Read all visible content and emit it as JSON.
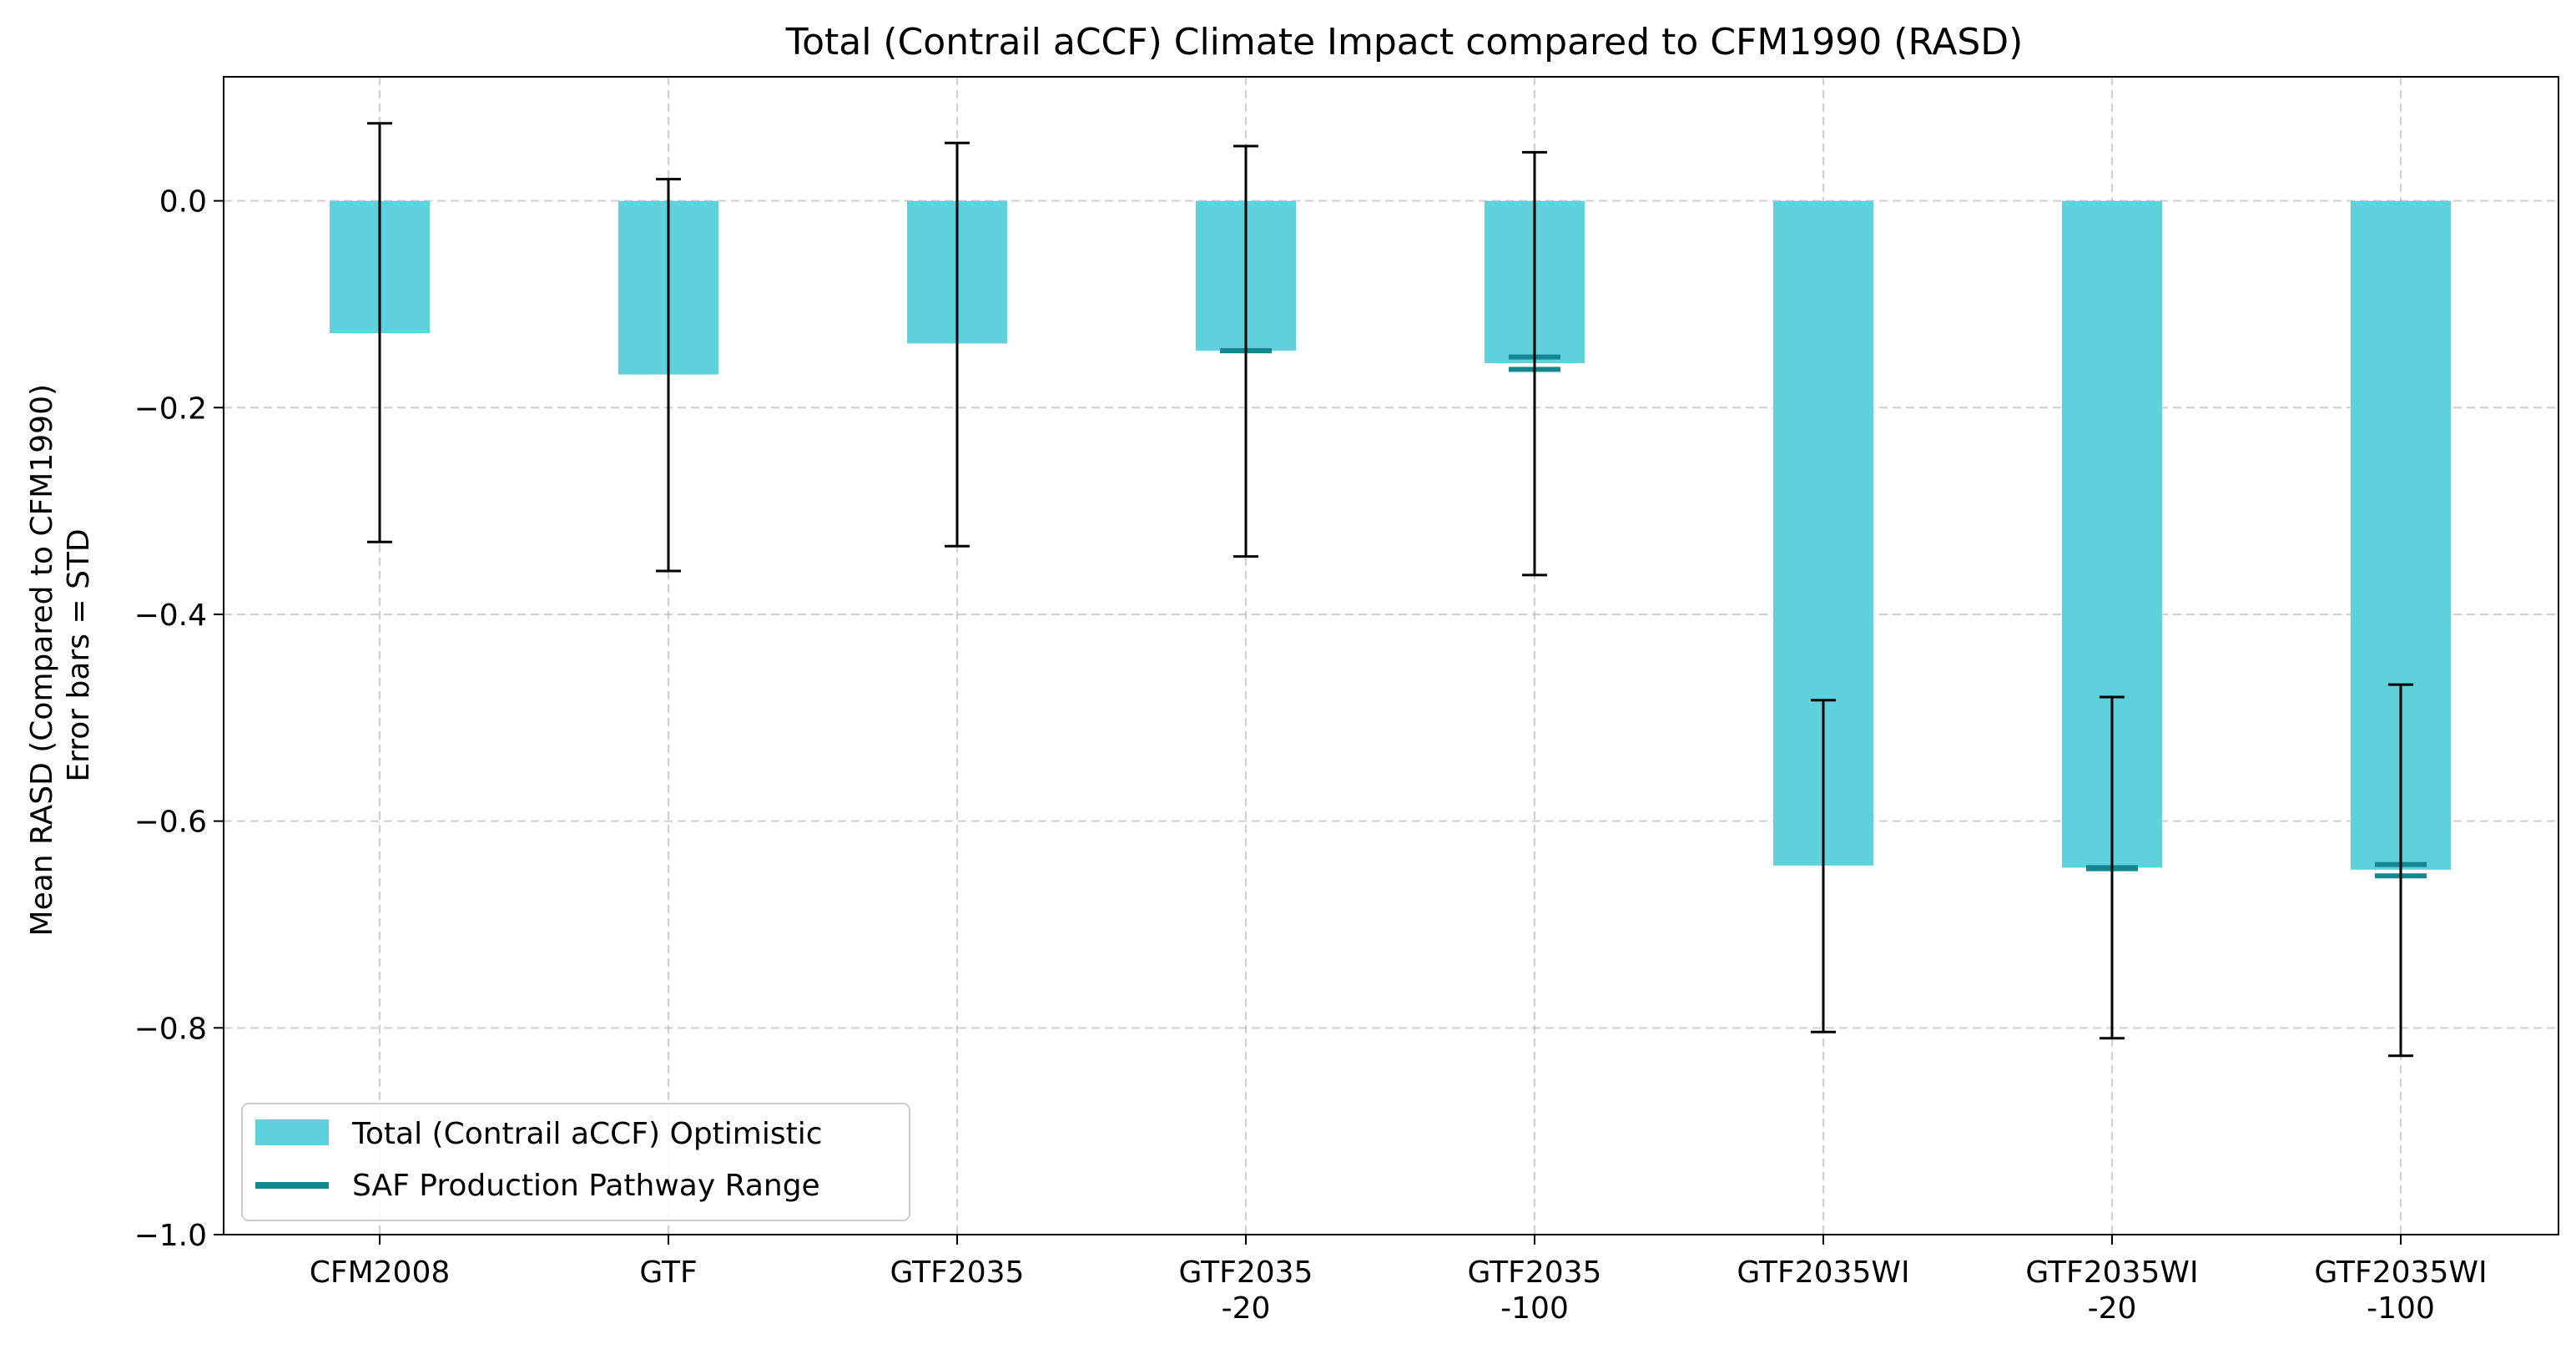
{
  "chart_data": {
    "type": "bar",
    "title": "Total (Contrail aCCF) Climate Impact compared to CFM1990 (RASD)",
    "ylabel": [
      "Mean RASD (Compared to CFM1990)",
      "Error bars = STD"
    ],
    "xlabel": "",
    "ylim": [
      -1.0,
      0.12
    ],
    "yticks": [
      0.0,
      -0.2,
      -0.4,
      -0.6,
      -0.8,
      -1.0
    ],
    "ytick_labels": [
      "0.0",
      "−0.2",
      "−0.4",
      "−0.6",
      "−0.8",
      "−1.0"
    ],
    "grid": true,
    "legend_position": "bottom-left",
    "categories": [
      [
        "CFM2008"
      ],
      [
        "GTF"
      ],
      [
        "GTF2035"
      ],
      [
        "GTF2035",
        "-20"
      ],
      [
        "GTF2035",
        "-100"
      ],
      [
        "GTF2035WI"
      ],
      [
        "GTF2035WI",
        "-20"
      ],
      [
        "GTF2035WI",
        "-100"
      ]
    ],
    "series": [
      {
        "name": "Total (Contrail aCCF) Optimistic",
        "color": "#5ed1dc",
        "values": [
          -0.128,
          -0.168,
          -0.138,
          -0.145,
          -0.157,
          -0.643,
          -0.645,
          -0.647
        ],
        "error_low": [
          -0.33,
          -0.358,
          -0.334,
          -0.344,
          -0.362,
          -0.804,
          -0.81,
          -0.827
        ],
        "error_high": [
          0.075,
          0.021,
          0.056,
          0.053,
          0.047,
          -0.483,
          -0.48,
          -0.468
        ]
      }
    ],
    "saf_range": {
      "name": "SAF Production Pathway Range",
      "color": "#12878f",
      "ranges": [
        null,
        null,
        null,
        [
          -0.145,
          -0.145
        ],
        [
          -0.151,
          -0.163
        ],
        null,
        [
          -0.645,
          -0.646
        ],
        [
          -0.642,
          -0.653
        ]
      ]
    }
  }
}
